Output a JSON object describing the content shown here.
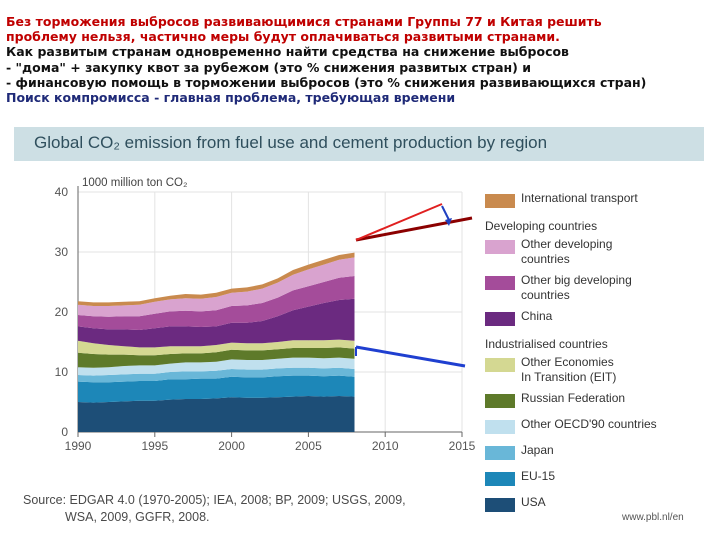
{
  "slide": {
    "lines": [
      "Без торможения выбросов развивающимися странами Группы 77 и Китая решить",
      "проблему нельзя, частично меры будут оплачиваться развитыми странами.",
      "Как развитым странам одновременно найти средства на снижение выбросов",
      "- \"дома\" + закупку квот за рубежом (это % снижения развитых стран) и",
      "- финансовую помощь в торможении выбросов (это % снижения развивающихся стран)",
      "Поиск компромисса - главная проблема, требующая времени"
    ]
  },
  "figure": {
    "title": "Global CO₂ emission from fuel use and cement production by region",
    "source_line1": "Source: EDGAR 4.0 (1970-2005); IEA, 2008; BP, 2009; USGS, 2009,",
    "source_line2": "WSA, 2009, GGFR, 2008.",
    "url": "www.pbl.nl/en"
  },
  "legend": {
    "items": [
      {
        "kind": "item",
        "label": "International transport",
        "color": "#c98a4e"
      },
      {
        "kind": "header",
        "label": "Developing countries"
      },
      {
        "kind": "item",
        "label": "Other developing\ncountries",
        "color": "#d9a3cf"
      },
      {
        "kind": "item",
        "label": "Other big developing\ncountries",
        "color": "#a44c9a"
      },
      {
        "kind": "item",
        "label": "China",
        "color": "#6b2a80"
      },
      {
        "kind": "header",
        "label": "Industrialised countries"
      },
      {
        "kind": "item",
        "label": "Other Economies\nIn Transition (EIT)",
        "color": "#d4d892"
      },
      {
        "kind": "item",
        "label": "Russian Federation",
        "color": "#5e7a2a"
      },
      {
        "kind": "item",
        "label": "Other OECD'90 countries",
        "color": "#c0e0ee"
      },
      {
        "kind": "item",
        "label": "Japan",
        "color": "#69b7d8"
      },
      {
        "kind": "item",
        "label": "EU-15",
        "color": "#1d87b8"
      },
      {
        "kind": "item",
        "label": "USA",
        "color": "#1d4e77"
      }
    ]
  },
  "chart_data": {
    "type": "area",
    "stacked": true,
    "unit_label": "1000 million ton CO₂",
    "x": [
      1990,
      1991,
      1992,
      1993,
      1994,
      1995,
      1996,
      1997,
      1998,
      1999,
      2000,
      2001,
      2002,
      2003,
      2004,
      2005,
      2006,
      2007,
      2008
    ],
    "xlim": [
      1990,
      2015
    ],
    "xticks": [
      "1990",
      "1995",
      "2000",
      "2005",
      "2010",
      "2015"
    ],
    "ylim": [
      0,
      40
    ],
    "yticks": [
      "0",
      "10",
      "20",
      "30",
      "40"
    ],
    "grid": true,
    "legend_position": "right",
    "series": [
      {
        "name": "USA",
        "color": "#1d4e77",
        "values": [
          5.0,
          4.9,
          5.0,
          5.1,
          5.2,
          5.2,
          5.4,
          5.5,
          5.5,
          5.6,
          5.8,
          5.7,
          5.7,
          5.8,
          5.9,
          6.0,
          5.9,
          6.0,
          5.9
        ]
      },
      {
        "name": "EU-15",
        "color": "#1d87b8",
        "values": [
          3.4,
          3.4,
          3.3,
          3.3,
          3.3,
          3.3,
          3.4,
          3.3,
          3.4,
          3.3,
          3.4,
          3.4,
          3.4,
          3.5,
          3.5,
          3.4,
          3.4,
          3.4,
          3.3
        ]
      },
      {
        "name": "Japan",
        "color": "#69b7d8",
        "values": [
          1.1,
          1.1,
          1.2,
          1.2,
          1.2,
          1.2,
          1.2,
          1.3,
          1.2,
          1.3,
          1.3,
          1.3,
          1.3,
          1.3,
          1.3,
          1.3,
          1.3,
          1.3,
          1.3
        ]
      },
      {
        "name": "Other OECD'90 countries",
        "color": "#c0e0ee",
        "values": [
          1.3,
          1.3,
          1.3,
          1.4,
          1.4,
          1.4,
          1.4,
          1.5,
          1.5,
          1.5,
          1.6,
          1.6,
          1.6,
          1.6,
          1.7,
          1.7,
          1.7,
          1.7,
          1.7
        ]
      },
      {
        "name": "Russian Federation",
        "color": "#5e7a2a",
        "values": [
          2.4,
          2.3,
          2.1,
          1.9,
          1.7,
          1.7,
          1.6,
          1.5,
          1.5,
          1.6,
          1.6,
          1.6,
          1.6,
          1.6,
          1.6,
          1.6,
          1.7,
          1.7,
          1.7
        ]
      },
      {
        "name": "Other Economies In Transition (EIT)",
        "color": "#d4d892",
        "values": [
          2.0,
          1.8,
          1.6,
          1.4,
          1.3,
          1.3,
          1.3,
          1.2,
          1.2,
          1.2,
          1.2,
          1.2,
          1.2,
          1.2,
          1.3,
          1.3,
          1.3,
          1.3,
          1.3
        ]
      },
      {
        "name": "China",
        "color": "#6b2a80",
        "values": [
          2.4,
          2.5,
          2.6,
          2.8,
          2.9,
          3.2,
          3.3,
          3.3,
          3.2,
          3.1,
          3.3,
          3.4,
          3.7,
          4.3,
          5.0,
          5.6,
          6.2,
          6.6,
          7.0
        ]
      },
      {
        "name": "Other big developing countries",
        "color": "#a44c9a",
        "values": [
          1.9,
          2.0,
          2.1,
          2.2,
          2.3,
          2.4,
          2.5,
          2.6,
          2.6,
          2.7,
          2.8,
          2.9,
          3.0,
          3.1,
          3.3,
          3.4,
          3.5,
          3.7,
          3.8
        ]
      },
      {
        "name": "Other developing countries",
        "color": "#d9a3cf",
        "values": [
          1.7,
          1.7,
          1.8,
          1.8,
          1.9,
          2.0,
          2.0,
          2.1,
          2.1,
          2.2,
          2.2,
          2.3,
          2.4,
          2.5,
          2.6,
          2.8,
          2.9,
          3.0,
          3.1
        ]
      },
      {
        "name": "International transport",
        "color": "#c98a4e",
        "values": [
          0.6,
          0.6,
          0.6,
          0.6,
          0.6,
          0.6,
          0.6,
          0.7,
          0.7,
          0.7,
          0.7,
          0.7,
          0.7,
          0.7,
          0.8,
          0.8,
          0.8,
          0.8,
          0.8
        ]
      }
    ]
  }
}
